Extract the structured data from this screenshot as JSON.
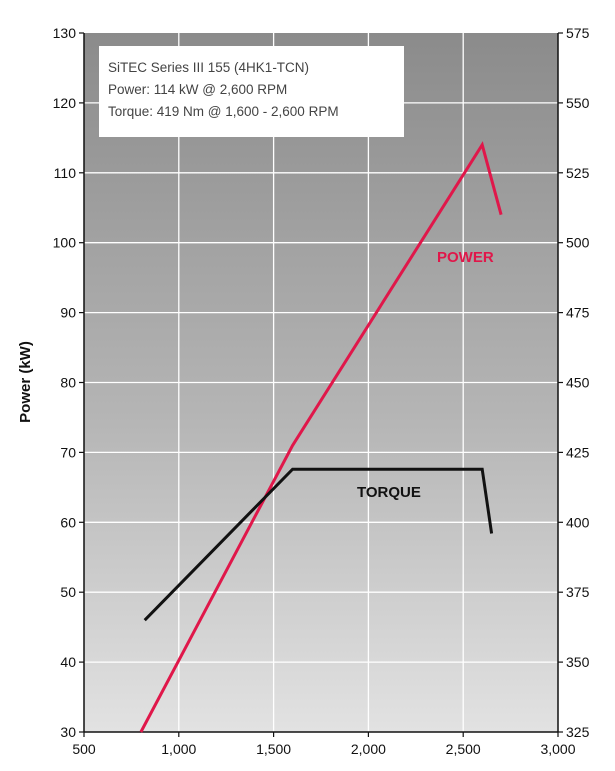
{
  "chart_data": {
    "type": "line",
    "info_box": [
      "SiTEC Series III 155 (4HK1-TCN)",
      "Power: 114 kW @ 2,600 RPM",
      "Torque: 419 Nm @ 1,600 - 2,600 RPM"
    ],
    "xlabel": "",
    "ylabel": "Power (kW)",
    "y2label": "",
    "xlim": [
      500,
      3000
    ],
    "ylim": [
      30,
      130
    ],
    "y2lim": [
      325,
      575
    ],
    "x_ticks": [
      500,
      1000,
      1500,
      2000,
      2500,
      3000
    ],
    "x_tick_labels": [
      "500",
      "1,000",
      "1,500",
      "2,000",
      "2,500",
      "3,000"
    ],
    "y_ticks": [
      30,
      40,
      50,
      60,
      70,
      80,
      90,
      100,
      110,
      120,
      130
    ],
    "y2_ticks": [
      325,
      350,
      375,
      400,
      425,
      450,
      475,
      500,
      525,
      550,
      575
    ],
    "grid": true,
    "series": [
      {
        "name": "POWER",
        "axis": "left",
        "color": "#e0174a",
        "x": [
          800,
          1600,
          2600,
          2700
        ],
        "y": [
          30,
          71,
          114,
          104
        ]
      },
      {
        "name": "TORQUE",
        "axis": "right",
        "color": "#111111",
        "x": [
          820,
          1600,
          2600,
          2650
        ],
        "y": [
          365,
          419,
          419,
          396
        ]
      }
    ]
  }
}
